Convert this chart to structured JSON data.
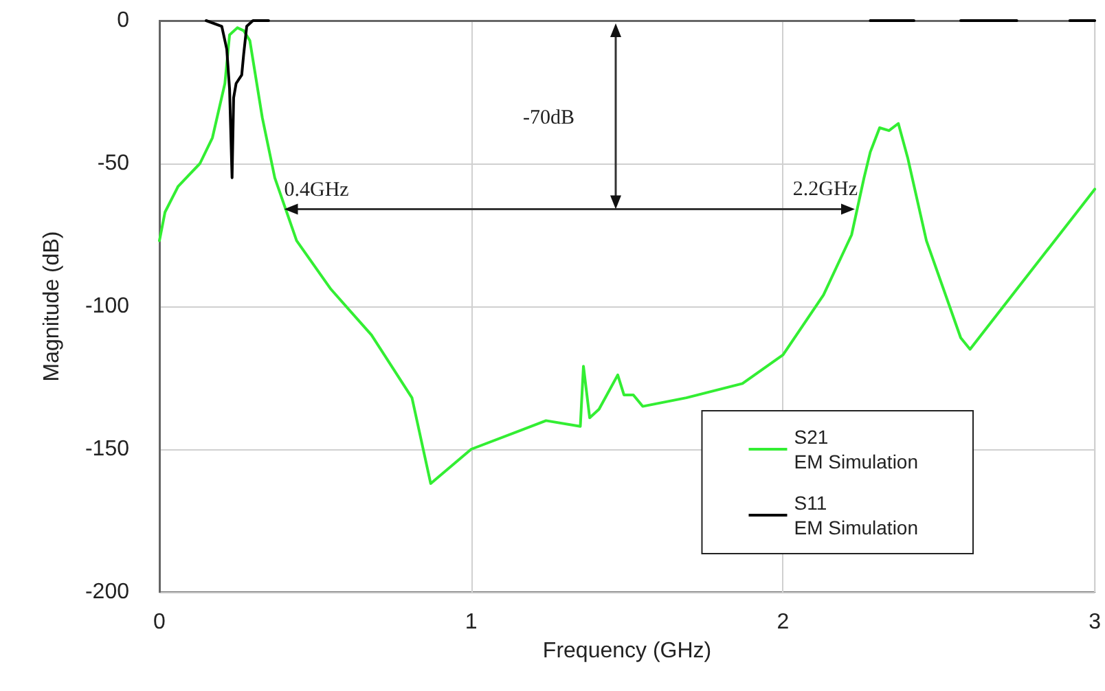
{
  "chart_data": {
    "type": "line",
    "xlabel": "Frequency (GHz)",
    "ylabel": "Magnitude (dB)",
    "xlim": [
      0,
      3
    ],
    "xticks": [
      0,
      1,
      2,
      3
    ],
    "ylim": [
      -200,
      0
    ],
    "yticks": [
      -200,
      -150,
      -100,
      -50,
      0
    ],
    "grid": true,
    "legend": "bottom right",
    "marker": "none",
    "line_style": "solid",
    "series": [
      {
        "name": "S21\nEM Simulation",
        "color": "#33ee33",
        "x": [
          0,
          0.018,
          0.06,
          0.13,
          0.17,
          0.21,
          0.225,
          0.25,
          0.27,
          0.29,
          0.33,
          0.37,
          0.44,
          0.55,
          0.68,
          0.81,
          0.87,
          1.0,
          1.24,
          1.35,
          1.36,
          1.38,
          1.41,
          1.47,
          1.49,
          1.52,
          1.55,
          1.69,
          1.87,
          2.0,
          2.13,
          2.22,
          2.26,
          2.28,
          2.31,
          2.34,
          2.37,
          2.4,
          2.46,
          2.57,
          2.6,
          2.75,
          3.0
        ],
        "values": [
          -77,
          -67,
          -58,
          -50,
          -41,
          -22,
          -5,
          -2.5,
          -3.5,
          -7,
          -34,
          -55,
          -77,
          -94,
          -110,
          -132,
          -162,
          -150,
          -140,
          -142,
          -121,
          -139,
          -136,
          -124,
          -131,
          -131,
          -135,
          -132,
          -127,
          -117,
          -96,
          -75,
          -55,
          -46,
          -37.5,
          -38.5,
          -36,
          -48,
          -77,
          -111,
          -115,
          -94,
          -59
        ]
      },
      {
        "name": "S11\nEM Simulation",
        "color": "#000000",
        "x": [
          0.15,
          0.2,
          0.216,
          0.225,
          0.233,
          0.238,
          0.246,
          0.264,
          0.27,
          0.28,
          0.3,
          0.35,
          0.36,
          2.28,
          2.42,
          2.43,
          2.57,
          2.75,
          2.76,
          2.92,
          3.0
        ],
        "values": [
          0,
          -2,
          -10,
          -24,
          -55,
          -27,
          -22,
          -19,
          -12,
          -2,
          0,
          0,
          null,
          0,
          0,
          null,
          0,
          0,
          null,
          0,
          0
        ]
      }
    ],
    "annotations": [
      {
        "text": "0.4GHz",
        "x": 0.4,
        "y": -66
      },
      "2.2GHz",
      "-70dB"
    ]
  }
}
